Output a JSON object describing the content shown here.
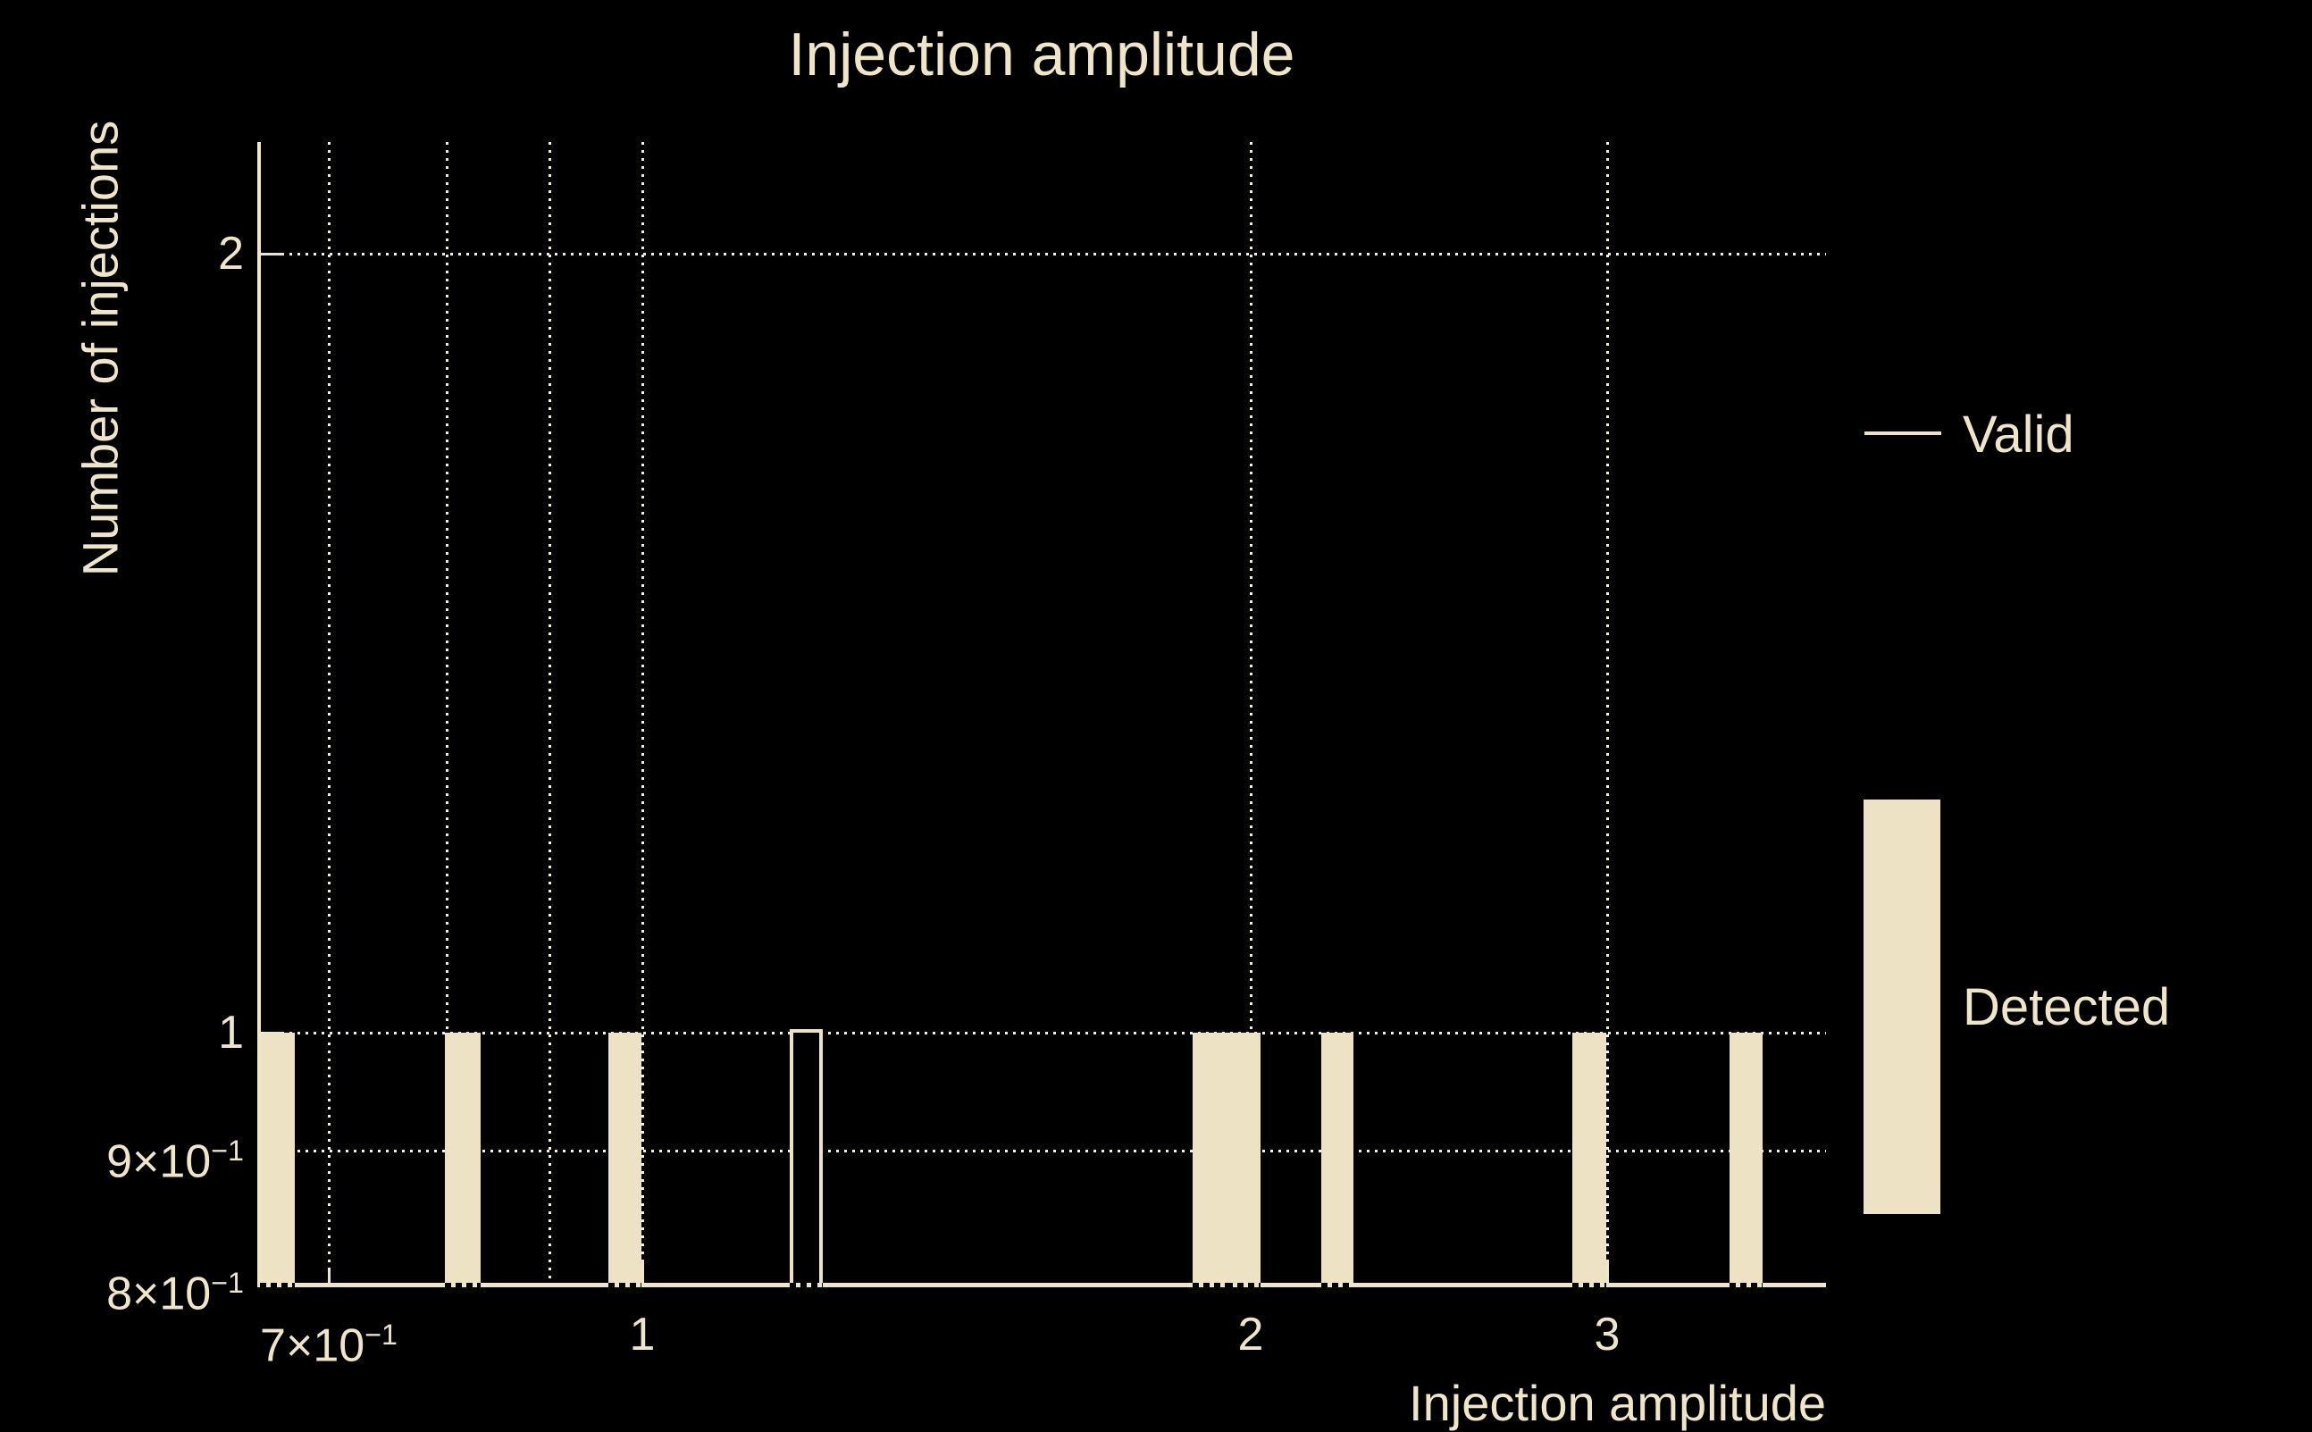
{
  "title": "Injection amplitude",
  "axes": {
    "xlabel": "Injection amplitude",
    "ylabel": "Number of injections",
    "x_scale": "log",
    "y_scale": "log",
    "xlim": [
      0.645,
      3.85
    ],
    "ylim": [
      0.8,
      2.21
    ],
    "x_ticks": [
      {
        "value": 0.7,
        "base": "7×10",
        "sup": "−1",
        "label": "7×10⁻¹",
        "major": false
      },
      {
        "value": 1,
        "base": "1",
        "sup": "",
        "label": "1",
        "major": true
      },
      {
        "value": 2,
        "base": "2",
        "sup": "",
        "label": "2",
        "major": true
      },
      {
        "value": 3,
        "base": "3",
        "sup": "",
        "label": "3",
        "major": true
      }
    ],
    "y_ticks": [
      {
        "value": 0.8,
        "base": "8×10",
        "sup": "−1",
        "label": "8×10⁻¹",
        "major": false
      },
      {
        "value": 0.9,
        "base": "9×10",
        "sup": "−1",
        "label": "9×10⁻¹",
        "major": false
      },
      {
        "value": 1,
        "base": "1",
        "sup": "",
        "label": "1",
        "major": true
      },
      {
        "value": 2,
        "base": "2",
        "sup": "",
        "label": "2",
        "major": true
      }
    ],
    "x_gridlines": [
      0.7,
      0.8,
      0.9,
      1,
      2,
      3
    ],
    "y_gridlines": [
      0.9,
      1,
      2
    ],
    "grid_style": "dotted"
  },
  "chart_data": {
    "type": "bar",
    "subtype": "histogram",
    "title": "Injection amplitude",
    "xlabel": "Injection amplitude",
    "ylabel": "Number of injections",
    "x_scale": "log",
    "y_scale": "log",
    "xlim": [
      0.645,
      3.85
    ],
    "ylim": [
      0.8,
      2.21
    ],
    "grid": true,
    "legend_position": "right",
    "series": [
      {
        "name": "Detected",
        "style": "filled",
        "bins": [
          {
            "x0": 0.647,
            "x1": 0.673,
            "count": 1
          },
          {
            "x0": 0.799,
            "x1": 0.832,
            "count": 1
          },
          {
            "x0": 0.962,
            "x1": 0.999,
            "count": 1
          },
          {
            "x0": 1.872,
            "x1": 1.945,
            "count": 1
          },
          {
            "x0": 1.945,
            "x1": 2.021,
            "count": 1
          },
          {
            "x0": 2.167,
            "x1": 2.248,
            "count": 1
          },
          {
            "x0": 2.884,
            "x1": 2.998,
            "count": 1
          },
          {
            "x0": 3.449,
            "x1": 3.58,
            "count": 1
          }
        ]
      },
      {
        "name": "Valid",
        "style": "outline",
        "bins": [
          {
            "x0": 1.183,
            "x1": 1.229,
            "count": 1
          }
        ]
      }
    ]
  },
  "legend": {
    "items": [
      {
        "label": "Valid",
        "swatch": "line"
      },
      {
        "label": "Detected",
        "swatch": "bar"
      }
    ]
  },
  "colors": {
    "background": "#000000",
    "foreground": "#efe6c9",
    "bar_fill": "#ede3c4",
    "grid": "#f3eedd",
    "bar_bottom_dash": "#000000"
  }
}
